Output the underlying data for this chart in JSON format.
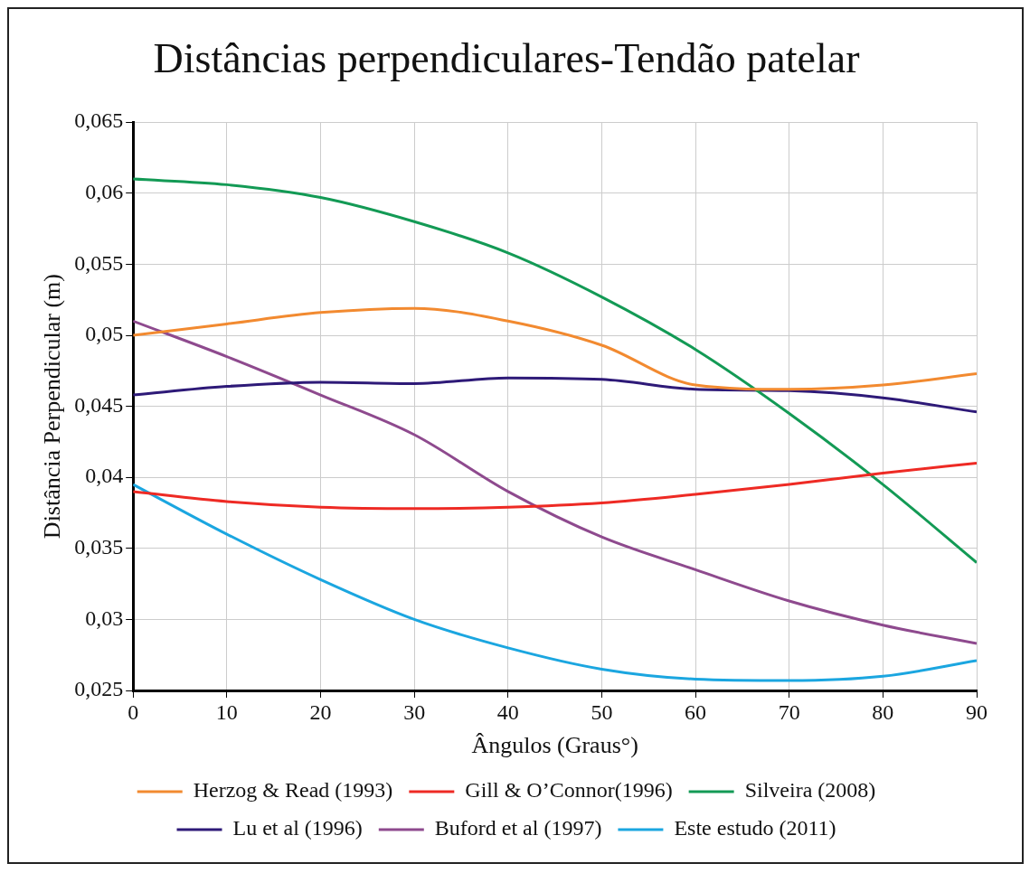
{
  "chart_data": {
    "type": "line",
    "title": "Distâncias perpendiculares-Tendão patelar",
    "xlabel": "Ângulos (Graus°)",
    "ylabel": "Distância Perpendicular (m)",
    "x": [
      0,
      10,
      20,
      30,
      40,
      50,
      60,
      70,
      80,
      90
    ],
    "xlim": [
      0,
      90
    ],
    "xticks": [
      0,
      10,
      20,
      30,
      40,
      50,
      60,
      70,
      80,
      90
    ],
    "ylim": [
      0.025,
      0.065
    ],
    "yticks": [
      {
        "value": 0.025,
        "label": "0,025"
      },
      {
        "value": 0.03,
        "label": "0,03"
      },
      {
        "value": 0.035,
        "label": "0,035"
      },
      {
        "value": 0.04,
        "label": "0,04"
      },
      {
        "value": 0.045,
        "label": "0,045"
      },
      {
        "value": 0.05,
        "label": "0,05"
      },
      {
        "value": 0.055,
        "label": "0,055"
      },
      {
        "value": 0.06,
        "label": "0,06"
      },
      {
        "value": 0.065,
        "label": "0,065"
      }
    ],
    "grid": true,
    "legend": "bottom",
    "marker": "none",
    "line_style": "solid",
    "series": [
      {
        "name": "Herzog & Read (1993)",
        "color": "#f28a30",
        "values": [
          0.05,
          0.0508,
          0.0516,
          0.0519,
          0.051,
          0.0493,
          0.0465,
          0.0462,
          0.0465,
          0.0473
        ]
      },
      {
        "name": "Gill & O’Connor(1996)",
        "color": "#ee2a24",
        "values": [
          0.039,
          0.0383,
          0.0379,
          0.0378,
          0.0379,
          0.0382,
          0.0388,
          0.0395,
          0.0403,
          0.041
        ]
      },
      {
        "name": "Silveira (2008)",
        "color": "#139a55",
        "values": [
          0.061,
          0.0606,
          0.0597,
          0.058,
          0.0558,
          0.0527,
          0.049,
          0.0445,
          0.0395,
          0.034
        ]
      },
      {
        "name": "Lu et al (1996)",
        "color": "#2e1a78",
        "values": [
          0.0458,
          0.0464,
          0.0467,
          0.0466,
          0.047,
          0.0469,
          0.0462,
          0.0461,
          0.0456,
          0.0446
        ]
      },
      {
        "name": "Buford et al (1997)",
        "color": "#8e4a8e",
        "values": [
          0.051,
          0.0485,
          0.0458,
          0.043,
          0.039,
          0.0358,
          0.0335,
          0.0313,
          0.0296,
          0.0283
        ]
      },
      {
        "name": "Este estudo (2011)",
        "color": "#1ba6e0",
        "values": [
          0.0395,
          0.036,
          0.0328,
          0.03,
          0.028,
          0.0265,
          0.0258,
          0.0257,
          0.026,
          0.0271
        ]
      }
    ]
  }
}
